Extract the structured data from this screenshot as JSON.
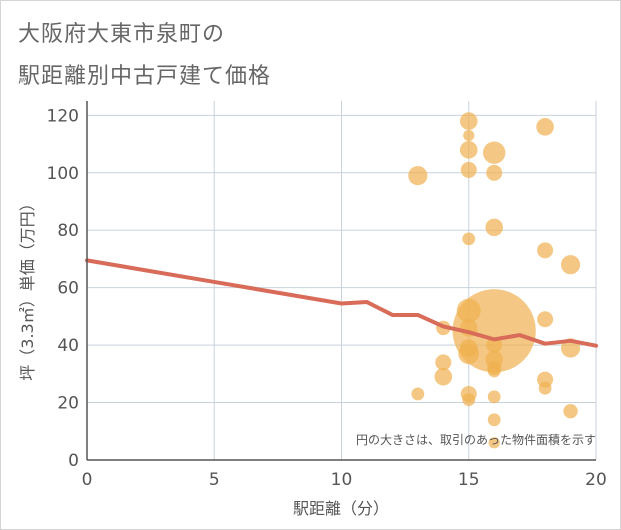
{
  "title": {
    "line1": "大阪府大東市泉町の",
    "line2": "駅距離別中古戸建て価格"
  },
  "chart_data": {
    "type": "scatter",
    "xlabel": "駅距離（分）",
    "ylabel": "坪（3.3㎡）単価（万円）",
    "xlim": [
      0,
      20
    ],
    "ylim": [
      0,
      125
    ],
    "x_ticks": [
      0,
      5,
      10,
      15,
      20
    ],
    "y_ticks": [
      0,
      20,
      40,
      60,
      80,
      100,
      120
    ],
    "x_tick_labels": [
      "0",
      "5",
      "10",
      "15",
      "20"
    ],
    "y_tick_labels": [
      "0",
      "20",
      "40",
      "60",
      "80",
      "100",
      "120"
    ],
    "grid": true,
    "annotation": "円の大きさは、取引のあった物件面積を示す",
    "colors": {
      "bubble": "#f0b050",
      "trend": "#d86c58",
      "grid": "#c8d2dc",
      "axis": "#555555",
      "text": "#555555"
    },
    "bubbles": [
      {
        "x": 13,
        "y": 99,
        "size": 1.2
      },
      {
        "x": 13,
        "y": 23,
        "size": 0.8
      },
      {
        "x": 14,
        "y": 46,
        "size": 0.9
      },
      {
        "x": 14,
        "y": 34,
        "size": 1.0
      },
      {
        "x": 14,
        "y": 29,
        "size": 1.1
      },
      {
        "x": 15,
        "y": 118,
        "size": 1.1
      },
      {
        "x": 15,
        "y": 113,
        "size": 0.7
      },
      {
        "x": 15,
        "y": 108,
        "size": 1.1
      },
      {
        "x": 15,
        "y": 101,
        "size": 1.0
      },
      {
        "x": 15,
        "y": 77,
        "size": 0.8
      },
      {
        "x": 15,
        "y": 52,
        "size": 1.5
      },
      {
        "x": 15,
        "y": 46,
        "size": 1.1
      },
      {
        "x": 15,
        "y": 39,
        "size": 1.1
      },
      {
        "x": 15,
        "y": 37,
        "size": 1.3
      },
      {
        "x": 15,
        "y": 23,
        "size": 1.0
      },
      {
        "x": 15,
        "y": 21,
        "size": 0.8
      },
      {
        "x": 16,
        "y": 107,
        "size": 1.4
      },
      {
        "x": 16,
        "y": 100,
        "size": 1.0
      },
      {
        "x": 16,
        "y": 81,
        "size": 1.1
      },
      {
        "x": 16,
        "y": 45,
        "size": 5.2
      },
      {
        "x": 16,
        "y": 40,
        "size": 1.0
      },
      {
        "x": 16,
        "y": 35,
        "size": 1.1
      },
      {
        "x": 16,
        "y": 32,
        "size": 0.9
      },
      {
        "x": 16,
        "y": 31,
        "size": 0.8
      },
      {
        "x": 16,
        "y": 22,
        "size": 0.8
      },
      {
        "x": 16,
        "y": 14,
        "size": 0.8
      },
      {
        "x": 16,
        "y": 6,
        "size": 0.7
      },
      {
        "x": 18,
        "y": 116,
        "size": 1.1
      },
      {
        "x": 18,
        "y": 73,
        "size": 1.0
      },
      {
        "x": 18,
        "y": 49,
        "size": 1.0
      },
      {
        "x": 18,
        "y": 28,
        "size": 1.0
      },
      {
        "x": 18,
        "y": 25,
        "size": 0.8
      },
      {
        "x": 19,
        "y": 68,
        "size": 1.2
      },
      {
        "x": 19,
        "y": 39,
        "size": 1.2
      },
      {
        "x": 19,
        "y": 17,
        "size": 0.9
      }
    ],
    "trend_line": {
      "x": [
        0,
        5,
        10,
        11,
        12,
        13,
        14,
        15,
        16,
        17,
        18,
        19,
        20
      ],
      "y": [
        69.5,
        62,
        54.5,
        55,
        50.5,
        50.5,
        46.5,
        44.5,
        42,
        43.5,
        40.5,
        41.5,
        39.8
      ]
    }
  }
}
